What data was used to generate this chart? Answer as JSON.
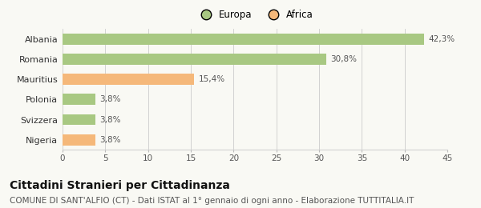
{
  "categories": [
    "Albania",
    "Romania",
    "Mauritius",
    "Polonia",
    "Svizzera",
    "Nigeria"
  ],
  "values": [
    42.3,
    30.8,
    15.4,
    3.8,
    3.8,
    3.8
  ],
  "labels": [
    "42,3%",
    "30,8%",
    "15,4%",
    "3,8%",
    "3,8%",
    "3,8%"
  ],
  "colors": [
    "#a8c882",
    "#a8c882",
    "#f5b87a",
    "#a8c882",
    "#a8c882",
    "#f5b87a"
  ],
  "legend_items": [
    {
      "label": "Europa",
      "color": "#a8c882"
    },
    {
      "label": "Africa",
      "color": "#f5b87a"
    }
  ],
  "xlim": [
    0,
    45
  ],
  "xticks": [
    0,
    5,
    10,
    15,
    20,
    25,
    30,
    35,
    40,
    45
  ],
  "title": "Cittadini Stranieri per Cittadinanza",
  "subtitle": "COMUNE DI SANT'ALFIO (CT) - Dati ISTAT al 1° gennaio di ogni anno - Elaborazione TUTTITALIA.IT",
  "background_color": "#f9f9f4",
  "title_fontsize": 10,
  "subtitle_fontsize": 7.5,
  "label_fontsize": 7.5,
  "tick_fontsize": 7.5,
  "ytick_fontsize": 8,
  "legend_fontsize": 8.5
}
